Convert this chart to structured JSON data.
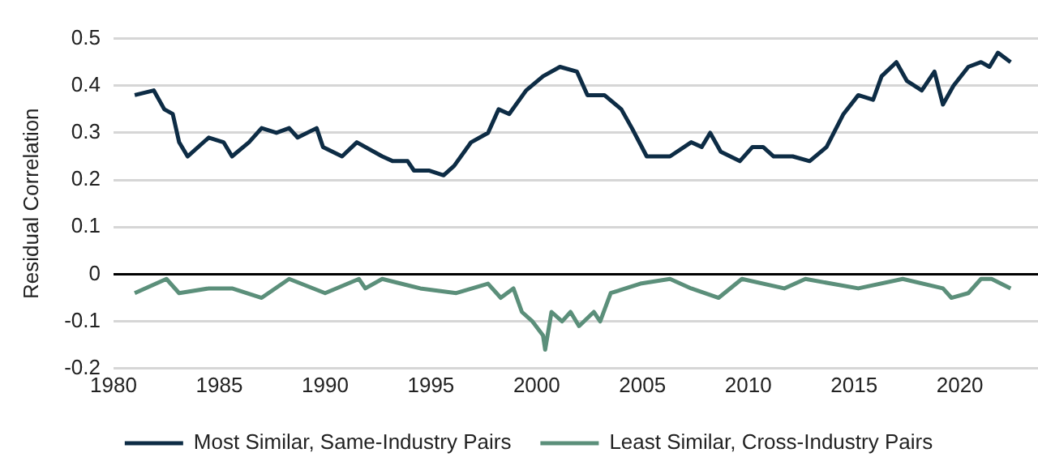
{
  "chart_data": {
    "type": "line",
    "ylabel": "Residual Correlation",
    "xlim": [
      1980,
      2024
    ],
    "xticks": [
      1980,
      1985,
      1990,
      1995,
      2000,
      2005,
      2010,
      2015,
      2020
    ],
    "ylim": [
      -0.2,
      0.5
    ],
    "yticks": [
      -0.2,
      -0.1,
      0,
      0.1,
      0.2,
      0.3,
      0.4,
      0.5
    ],
    "grid": "y",
    "legend": "bottom",
    "line_style": "solid",
    "marker": "none",
    "ref_lines": [
      {
        "axis": "y",
        "value": 0,
        "color": "#000000"
      }
    ],
    "series": [
      {
        "name": "Most Similar, Same-Industry Pairs",
        "color": "#0d2c45",
        "x": [
          1981.0,
          1981.9,
          1982.4,
          1982.8,
          1983.1,
          1983.5,
          1984.5,
          1985.2,
          1985.6,
          1986.4,
          1987.0,
          1987.7,
          1988.3,
          1988.7,
          1989.6,
          1989.9,
          1990.8,
          1991.5,
          1992.7,
          1993.2,
          1993.9,
          1994.2,
          1994.9,
          1995.6,
          1996.1,
          1996.9,
          1997.7,
          1998.2,
          1998.7,
          1999.5,
          2000.3,
          2001.1,
          2001.9,
          2002.4,
          2003.2,
          2004.0,
          2004.5,
          2005.2,
          2006.3,
          2007.3,
          2007.8,
          2008.2,
          2008.7,
          2009.6,
          2010.2,
          2010.7,
          2011.2,
          2012.1,
          2012.9,
          2013.7,
          2014.5,
          2015.2,
          2015.9,
          2016.3,
          2017.0,
          2017.5,
          2018.2,
          2018.8,
          2019.2,
          2019.7,
          2020.4,
          2021.0,
          2021.4,
          2021.8,
          2022.4
        ],
        "values": [
          0.38,
          0.39,
          0.35,
          0.34,
          0.28,
          0.25,
          0.29,
          0.28,
          0.25,
          0.28,
          0.31,
          0.3,
          0.31,
          0.29,
          0.31,
          0.27,
          0.25,
          0.28,
          0.25,
          0.24,
          0.24,
          0.22,
          0.22,
          0.21,
          0.23,
          0.28,
          0.3,
          0.35,
          0.34,
          0.39,
          0.42,
          0.44,
          0.43,
          0.38,
          0.38,
          0.35,
          0.31,
          0.25,
          0.25,
          0.28,
          0.27,
          0.3,
          0.26,
          0.24,
          0.27,
          0.27,
          0.25,
          0.25,
          0.24,
          0.27,
          0.34,
          0.38,
          0.37,
          0.42,
          0.45,
          0.41,
          0.39,
          0.43,
          0.36,
          0.4,
          0.44,
          0.45,
          0.44,
          0.47,
          0.45
        ]
      },
      {
        "name": "Least Similar, Cross-Industry Pairs",
        "color": "#5b8f7a",
        "x": [
          1981.0,
          1982.5,
          1983.1,
          1984.5,
          1985.6,
          1987.0,
          1988.3,
          1990.0,
          1991.6,
          1991.9,
          1992.7,
          1994.5,
          1996.2,
          1997.7,
          1998.3,
          1998.9,
          1999.3,
          1999.8,
          2000.3,
          2000.4,
          2000.7,
          2001.2,
          2001.6,
          2002.0,
          2002.7,
          2003.0,
          2003.5,
          2004.9,
          2006.3,
          2007.3,
          2008.6,
          2009.7,
          2011.7,
          2012.7,
          2015.2,
          2017.3,
          2019.2,
          2019.6,
          2020.4,
          2021.0,
          2021.5,
          2022.4
        ],
        "values": [
          -0.04,
          -0.01,
          -0.04,
          -0.03,
          -0.03,
          -0.05,
          -0.01,
          -0.04,
          -0.01,
          -0.03,
          -0.01,
          -0.03,
          -0.04,
          -0.02,
          -0.05,
          -0.03,
          -0.08,
          -0.1,
          -0.13,
          -0.16,
          -0.08,
          -0.1,
          -0.08,
          -0.11,
          -0.08,
          -0.1,
          -0.04,
          -0.02,
          -0.01,
          -0.03,
          -0.05,
          -0.01,
          -0.03,
          -0.01,
          -0.03,
          -0.01,
          -0.03,
          -0.05,
          -0.04,
          -0.01,
          -0.01,
          -0.03
        ]
      }
    ]
  }
}
